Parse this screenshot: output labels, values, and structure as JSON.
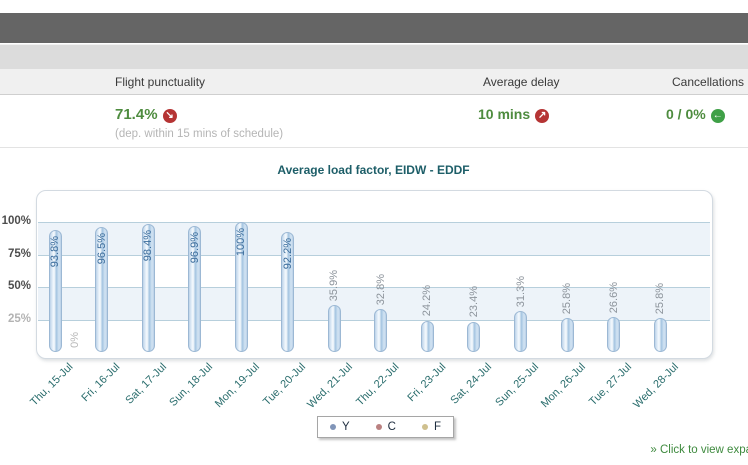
{
  "stats": {
    "punctuality": {
      "label": "Flight punctuality",
      "value": "71.4%",
      "caption": "(dep. within 15 mins of schedule)",
      "trend_icon": "arrow-down-right-icon",
      "trend_color": "#b53434"
    },
    "delay": {
      "label": "Average delay",
      "value": "10 mins",
      "trend_icon": "arrow-up-right-icon",
      "trend_color": "#b53434"
    },
    "cancellations": {
      "label": "Cancellations",
      "value": "0 / 0%",
      "trend_icon": "arrow-back-icon",
      "trend_color": "#3fa047"
    }
  },
  "colors": {
    "stat_value_green": "#4e8c3f",
    "chart_title_teal": "#1d5e68",
    "x_label_teal": "#2a6d6d",
    "bar_label_tall": "#3c6d9c",
    "bar_label_short": "#8d949c",
    "axis_label_dark": "#4d4d4d",
    "axis_label_muted": "#b3b3b3"
  },
  "chart_data": {
    "type": "bar",
    "title": "Average load factor, EIDW - EDDF",
    "categories": [
      "Thu, 15-Jul",
      "Fri, 16-Jul",
      "Sat, 17-Jul",
      "Sun, 18-Jul",
      "Mon, 19-Jul",
      "Tue, 20-Jul",
      "Wed, 21-Jul",
      "Thu, 22-Jul",
      "Fri, 23-Jul",
      "Sat, 24-Jul",
      "Sun, 25-Jul",
      "Mon, 26-Jul",
      "Tue, 27-Jul",
      "Wed, 28-Jul"
    ],
    "values": [
      93.8,
      96.5,
      98.4,
      96.9,
      100,
      92.2,
      35.9,
      32.8,
      24.2,
      23.4,
      31.3,
      25.8,
      26.6,
      25.8
    ],
    "value_labels": [
      "93.8%",
      "96.5%",
      "98.4%",
      "96.9%",
      "100%",
      "92.2%",
      "35.9%",
      "32.8%",
      "24.2%",
      "23.4%",
      "31.3%",
      "25.8%",
      "26.6%",
      "25.8%"
    ],
    "xlabel": "",
    "ylabel": "",
    "ylim": [
      0,
      125
    ],
    "yticks": [
      "100%",
      "75%",
      "50%",
      "25%"
    ],
    "ytick_values": [
      100,
      75,
      50,
      25
    ],
    "grid": true,
    "x_tick_rotation": -45,
    "bar_label_rotation": -90,
    "annotations": [
      {
        "text": "0%",
        "near_category": "Thu, 15-Jul"
      }
    ],
    "legend": {
      "position": "bottom",
      "entries": [
        {
          "label": "Y",
          "color": "#8195b8"
        },
        {
          "label": "C",
          "color": "#ba8181"
        },
        {
          "label": "F",
          "color": "#cfc08e"
        }
      ]
    }
  },
  "footer": {
    "link_text": "» Click to view expa"
  }
}
